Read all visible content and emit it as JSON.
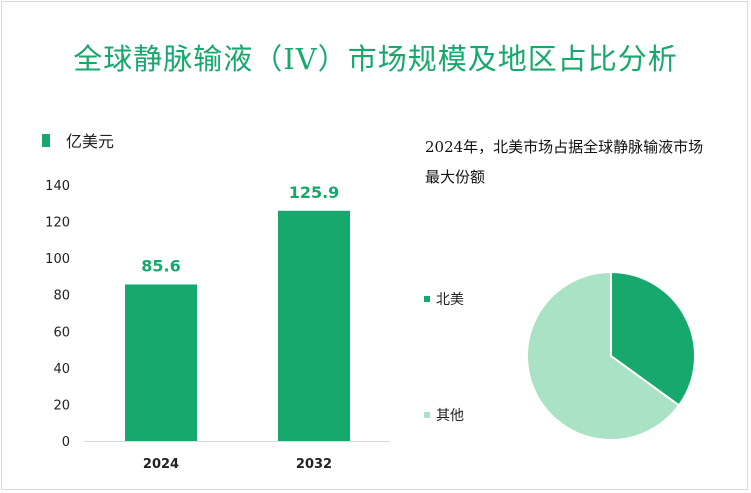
{
  "title": "全球静脉输液（IV）市场规模及地区占比分析",
  "bar_chart": {
    "unit_label": "亿美元"
  },
  "pie_chart": {
    "title": "2024年，北美市场占据全球静脉输液市场最大份额"
  },
  "colors": {
    "accent": "#17a86e",
    "light": "#a9e2c4"
  },
  "chart_data": [
    {
      "type": "bar",
      "categories": [
        "2024",
        "2032"
      ],
      "values": [
        85.6,
        125.9
      ],
      "data_labels": [
        "85.6",
        "125.9"
      ],
      "ylim": [
        0,
        140
      ],
      "yticks": [
        0,
        20,
        40,
        60,
        80,
        100,
        120,
        140
      ],
      "ylabel": "亿美元",
      "grid": false
    },
    {
      "type": "pie",
      "labels": [
        "北美",
        "其他"
      ],
      "values": [
        35,
        65
      ]
    }
  ]
}
